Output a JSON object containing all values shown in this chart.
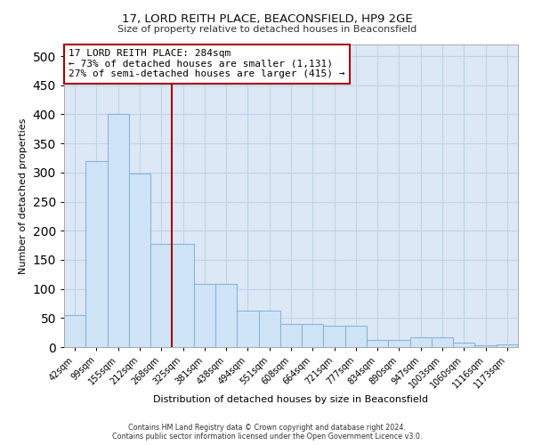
{
  "title1": "17, LORD REITH PLACE, BEACONSFIELD, HP9 2GE",
  "title2": "Size of property relative to detached houses in Beaconsfield",
  "xlabel": "Distribution of detached houses by size in Beaconsfield",
  "ylabel": "Number of detached properties",
  "categories": [
    "42sqm",
    "99sqm",
    "155sqm",
    "212sqm",
    "268sqm",
    "325sqm",
    "381sqm",
    "438sqm",
    "494sqm",
    "551sqm",
    "608sqm",
    "664sqm",
    "721sqm",
    "777sqm",
    "834sqm",
    "890sqm",
    "947sqm",
    "1003sqm",
    "1060sqm",
    "1116sqm",
    "1173sqm"
  ],
  "values": [
    55,
    320,
    400,
    298,
    178,
    178,
    108,
    108,
    63,
    63,
    40,
    40,
    37,
    37,
    13,
    13,
    17,
    17,
    8,
    3,
    5
  ],
  "bar_color": "#d0e4f7",
  "bar_edge_color": "#8ab4d8",
  "vline_color": "#aa0000",
  "annotation_text": "17 LORD REITH PLACE: 284sqm\n← 73% of detached houses are smaller (1,131)\n27% of semi-detached houses are larger (415) →",
  "annotation_box_color": "#ffffff",
  "annotation_box_edge": "#aa0000",
  "grid_color": "#c0d4e8",
  "bg_color": "#dce8f5",
  "footer": "Contains HM Land Registry data © Crown copyright and database right 2024.\nContains public sector information licensed under the Open Government Licence v3.0.",
  "ylim": [
    0,
    520
  ],
  "yticks": [
    0,
    50,
    100,
    150,
    200,
    250,
    300,
    350,
    400,
    450,
    500
  ],
  "vline_pos": 4.5
}
